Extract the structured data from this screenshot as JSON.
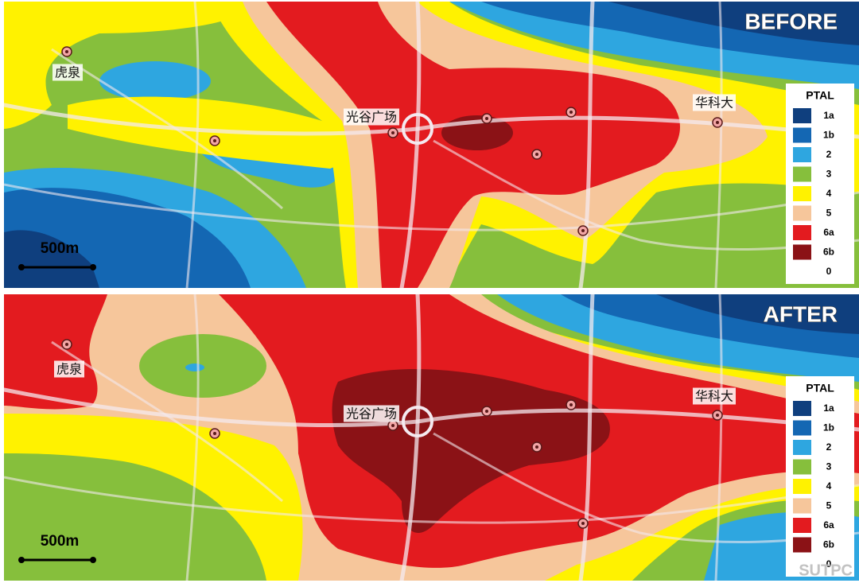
{
  "panels": [
    {
      "title": "BEFORE",
      "places": [
        "虎泉",
        "光谷广场",
        "华科大"
      ],
      "scale": "500m"
    },
    {
      "title": "AFTER",
      "places": [
        "虎泉",
        "光谷广场",
        "华科大"
      ],
      "scale": "500m"
    }
  ],
  "legend": {
    "title": "PTAL",
    "items": [
      {
        "label": "1a",
        "color": "#0f3f7e"
      },
      {
        "label": "1b",
        "color": "#1467b3"
      },
      {
        "label": "2",
        "color": "#2ea6e0"
      },
      {
        "label": "3",
        "color": "#86bf3c"
      },
      {
        "label": "4",
        "color": "#fff200"
      },
      {
        "label": "5",
        "color": "#f6c69b"
      },
      {
        "label": "6a",
        "color": "#e31b1f"
      },
      {
        "label": "6b",
        "color": "#8b1216"
      },
      {
        "label": "0",
        "color": "#ffffff"
      }
    ]
  },
  "watermark": "SUTPC"
}
